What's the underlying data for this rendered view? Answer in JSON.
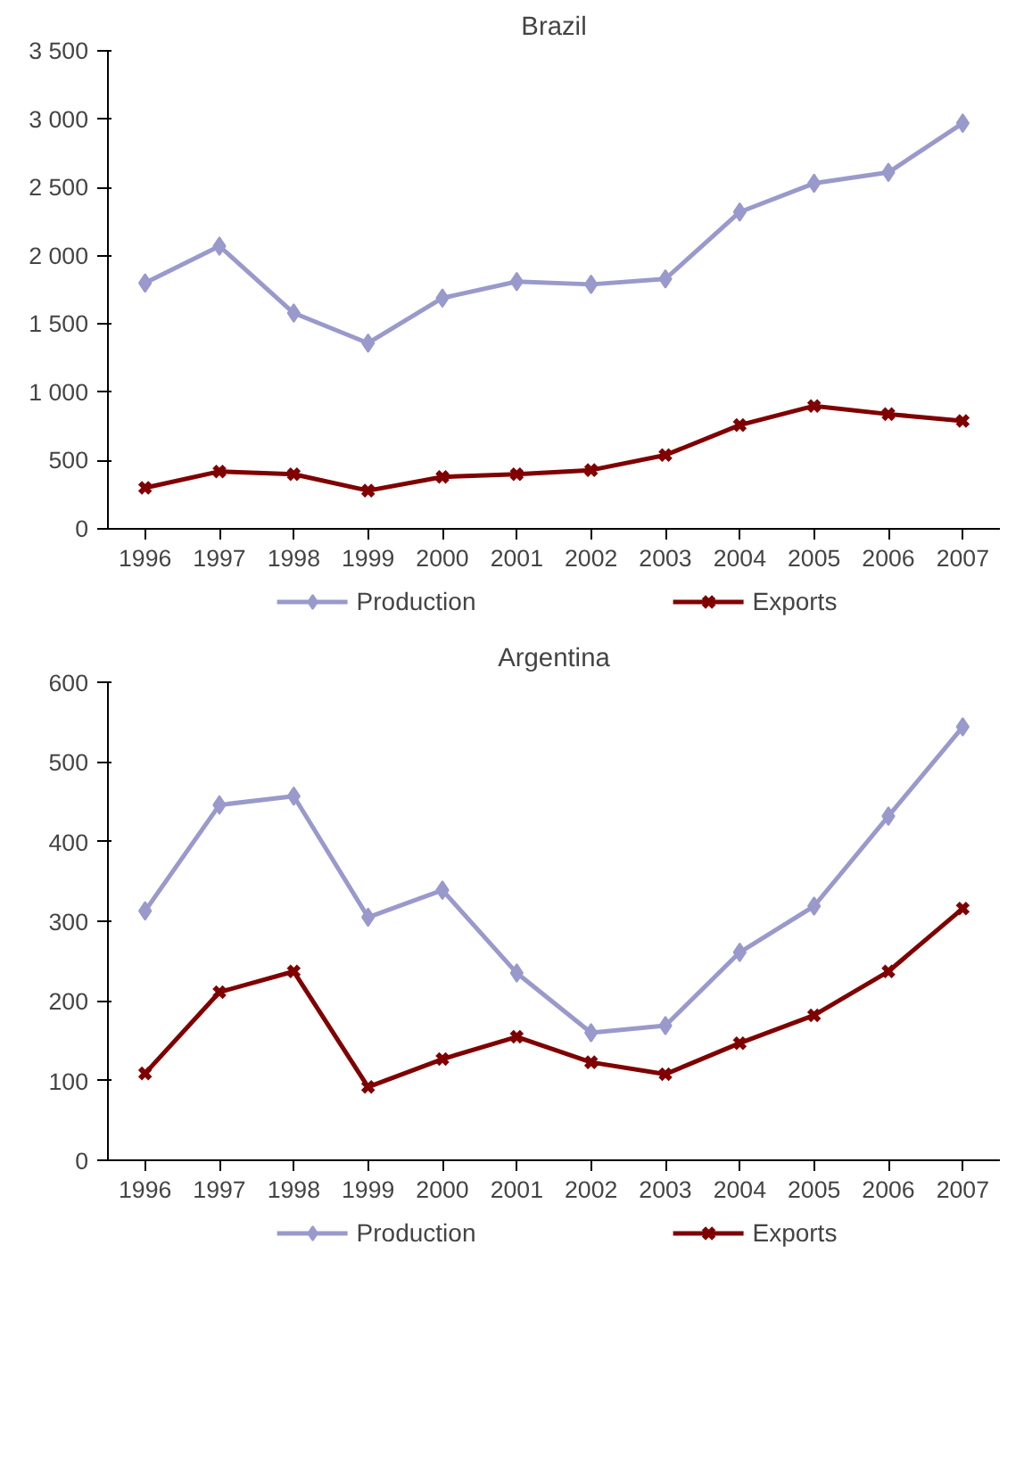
{
  "chart_data": [
    {
      "type": "line",
      "title": "Brazil",
      "categories": [
        "1996",
        "1997",
        "1998",
        "1999",
        "2000",
        "2001",
        "2002",
        "2003",
        "2004",
        "2005",
        "2006",
        "2007"
      ],
      "series": [
        {
          "name": "Production",
          "color": "#9999cc",
          "marker": "diamond",
          "values": [
            1800,
            2070,
            1580,
            1360,
            1690,
            1810,
            1790,
            1830,
            2320,
            2530,
            2610,
            2970
          ]
        },
        {
          "name": "Exports",
          "color": "#800000",
          "marker": "cross",
          "values": [
            300,
            420,
            400,
            280,
            380,
            400,
            430,
            540,
            760,
            900,
            840,
            790
          ]
        }
      ],
      "ylim": [
        0,
        3500
      ],
      "yticks": [
        0,
        500,
        {
          "value": 1000,
          "label": "1 000"
        },
        {
          "value": 1500,
          "label": "1 500"
        },
        {
          "value": 2000,
          "label": "2 000"
        },
        {
          "value": 2500,
          "label": "2 500"
        },
        {
          "value": 3000,
          "label": "3 000"
        },
        {
          "value": 3500,
          "label": "3 500"
        }
      ],
      "legend": "bottom",
      "line_style": "solid"
    },
    {
      "type": "line",
      "title": "Argentina",
      "categories": [
        "1996",
        "1997",
        "1998",
        "1999",
        "2000",
        "2001",
        "2002",
        "2003",
        "2004",
        "2005",
        "2006",
        "2007"
      ],
      "series": [
        {
          "name": "Production",
          "color": "#9999cc",
          "marker": "diamond",
          "values": [
            313,
            446,
            457,
            305,
            339,
            235,
            160,
            169,
            261,
            319,
            432,
            544
          ]
        },
        {
          "name": "Exports",
          "color": "#800000",
          "marker": "cross",
          "values": [
            109,
            211,
            237,
            92,
            127,
            155,
            123,
            108,
            147,
            182,
            237,
            316
          ]
        }
      ],
      "ylim": [
        0,
        600
      ],
      "yticks": [
        0,
        100,
        200,
        300,
        400,
        500,
        600
      ],
      "legend": "bottom",
      "line_style": "solid"
    }
  ]
}
